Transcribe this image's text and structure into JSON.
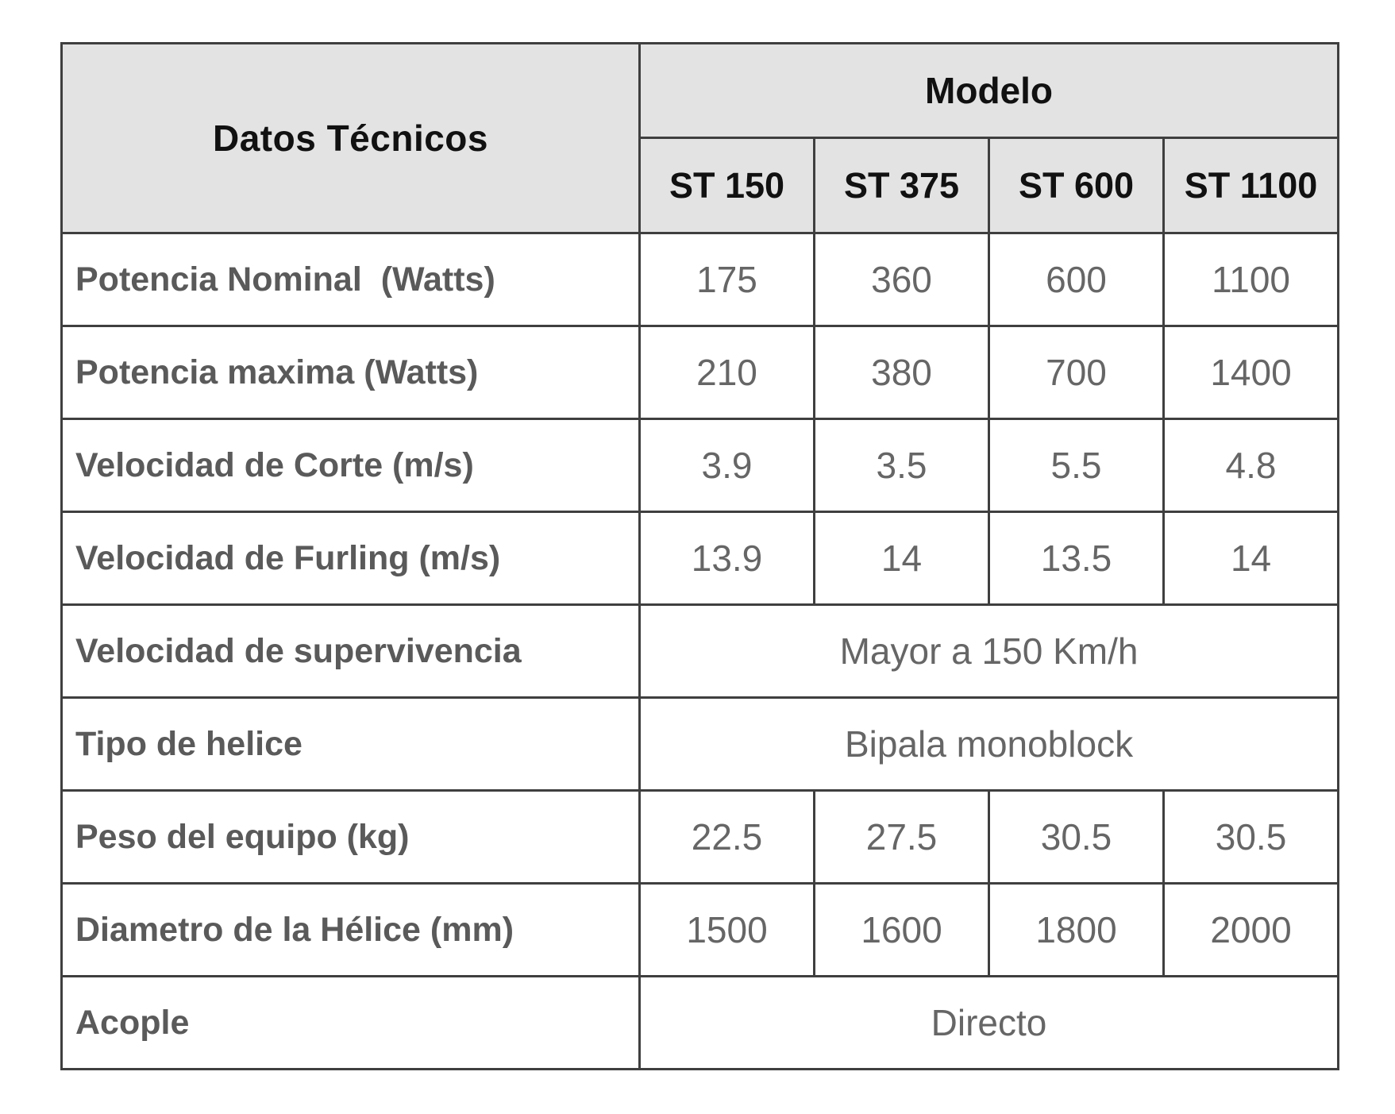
{
  "colors": {
    "page_bg": "#ffffff",
    "header_bg": "#e3e3e3",
    "header_text": "#111111",
    "label_text": "#5a5a5a",
    "value_text": "#666666",
    "border": "#3f3f3f"
  },
  "table": {
    "corner_header": "Datos Técnicos",
    "model_header": "Modelo",
    "models": [
      "ST 150",
      "ST 375",
      "ST 600",
      "ST 1100"
    ],
    "rows": [
      {
        "label": "Potencia Nominal  (Watts)",
        "values": [
          "175",
          "360",
          "600",
          "1100"
        ]
      },
      {
        "label": "Potencia maxima (Watts)",
        "values": [
          "210",
          "380",
          "700",
          "1400"
        ]
      },
      {
        "label": "Velocidad de Corte (m/s)",
        "values": [
          "3.9",
          "3.5",
          "5.5",
          "4.8"
        ]
      },
      {
        "label": "Velocidad de Furling (m/s)",
        "values": [
          "13.9",
          "14",
          "13.5",
          "14"
        ]
      },
      {
        "label": "Velocidad de supervivencia",
        "span_value": "Mayor a 150 Km/h"
      },
      {
        "label": "Tipo de helice",
        "span_value": "Bipala monoblock"
      },
      {
        "label": "Peso del equipo (kg)",
        "values": [
          "22.5",
          "27.5",
          "30.5",
          "30.5"
        ]
      },
      {
        "label": "Diametro de la Hélice (mm)",
        "values": [
          "1500",
          "1600",
          "1800",
          "2000"
        ]
      },
      {
        "label": "Acople",
        "span_value": "Directo"
      }
    ]
  }
}
